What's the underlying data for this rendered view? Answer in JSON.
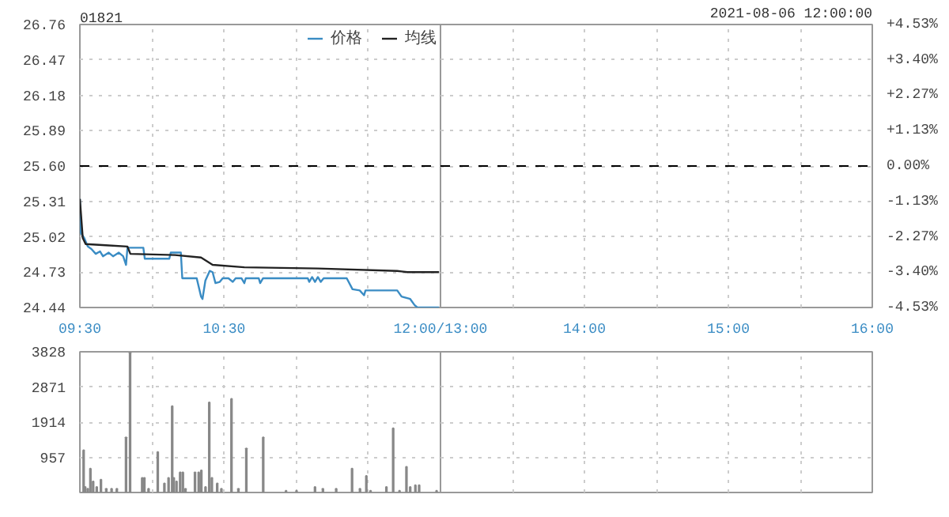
{
  "chart_data": [
    {
      "type": "line",
      "title": "01821",
      "legend": "top right",
      "grid": true,
      "marker": "none",
      "line_style": "solid",
      "xlim": [
        9.5,
        12
      ],
      "xticks": [
        {
          "value": 9.5,
          "label": "09:30"
        },
        {
          "value": 10,
          "label": null
        },
        {
          "value": 10.5,
          "label": "10:30"
        },
        {
          "value": 11,
          "label": null
        },
        {
          "value": 11.5,
          "label": null
        },
        {
          "value": 12,
          "label": "12:00/13:00"
        }
      ],
      "ylim": [
        24.44,
        26.76
      ],
      "yticks": [
        {
          "value": 24.44,
          "label": "24.44"
        },
        {
          "value": 24.73,
          "label": "24.73"
        },
        {
          "value": 25.02,
          "label": "25.02"
        },
        {
          "value": 25.31,
          "label": "25.31"
        },
        {
          "value": 25.6,
          "label": "25.60"
        },
        {
          "value": 25.89,
          "label": "25.89"
        },
        {
          "value": 26.18,
          "label": "26.18"
        },
        {
          "value": 26.47,
          "label": "26.47"
        },
        {
          "value": 26.76,
          "label": "26.76"
        }
      ],
      "ref_lines": [
        {
          "axis": "y",
          "value": 25.6,
          "color": "#000000",
          "line_style": "dashed"
        }
      ],
      "series": [
        {
          "name": "价格",
          "color": "#3a8cc4",
          "x": [
            9.5,
            9.507,
            9.53,
            9.555,
            9.58,
            9.61,
            9.64,
            9.66,
            9.7,
            9.73,
            9.77,
            9.8,
            9.82,
            9.83,
            9.88,
            9.94,
            9.95,
            10.05,
            10.12,
            10.13,
            10.2,
            10.21,
            10.27,
            10.31,
            10.34,
            10.35,
            10.37,
            10.4,
            10.42,
            10.44,
            10.47,
            10.49,
            10.53,
            10.56,
            10.58,
            10.62,
            10.64,
            10.65,
            10.74,
            10.75,
            10.77,
            11.08,
            11.09,
            11.11,
            11.13,
            11.15,
            11.17,
            11.19,
            11.35,
            11.39,
            11.44,
            11.47,
            11.48,
            11.7,
            11.73,
            11.79,
            11.82,
            11.84,
            11.99
          ],
          "values": [
            25.33,
            25.05,
            25.01,
            24.94,
            24.92,
            24.88,
            24.9,
            24.86,
            24.89,
            24.86,
            24.89,
            24.86,
            24.79,
            24.93,
            24.93,
            24.93,
            24.84,
            24.84,
            24.84,
            24.89,
            24.89,
            24.68,
            24.68,
            24.68,
            24.53,
            24.51,
            24.66,
            24.74,
            24.73,
            24.64,
            24.65,
            24.68,
            24.68,
            24.65,
            24.68,
            24.68,
            24.64,
            24.68,
            24.68,
            24.64,
            24.68,
            24.68,
            24.65,
            24.69,
            24.65,
            24.69,
            24.65,
            24.68,
            24.68,
            24.59,
            24.58,
            24.54,
            24.58,
            24.58,
            24.53,
            24.51,
            24.46,
            24.44,
            24.44
          ]
        },
        {
          "name": "均线",
          "color": "#222222",
          "x": [
            9.5,
            9.52,
            9.54,
            9.68,
            9.83,
            9.85,
            10.16,
            10.34,
            10.42,
            10.64,
            11.15,
            11.7,
            11.77,
            11.99
          ],
          "values": [
            25.33,
            25.01,
            24.96,
            24.95,
            24.94,
            24.88,
            24.87,
            24.85,
            24.79,
            24.77,
            24.76,
            24.74,
            24.73,
            24.73
          ]
        }
      ]
    },
    {
      "type": "line",
      "title": "2021-08-06 12:00:00",
      "grid": true,
      "xlim": [
        13,
        16
      ],
      "xticks": [
        {
          "value": 13,
          "label": null
        },
        {
          "value": 13.5,
          "label": null
        },
        {
          "value": 14,
          "label": "14:00"
        },
        {
          "value": 14.5,
          "label": null
        },
        {
          "value": 15,
          "label": "15:00"
        },
        {
          "value": 15.5,
          "label": null
        },
        {
          "value": 16,
          "label": "16:00"
        }
      ],
      "y2lim": [
        -4.53,
        4.53
      ],
      "y2ticks": [
        {
          "value": -4.53,
          "label": "-4.53%"
        },
        {
          "value": -3.4,
          "label": "-3.40%"
        },
        {
          "value": -2.27,
          "label": "-2.27%"
        },
        {
          "value": -1.13,
          "label": "-1.13%"
        },
        {
          "value": 0,
          "label": "0.00%"
        },
        {
          "value": 1.13,
          "label": "+1.13%"
        },
        {
          "value": 2.27,
          "label": "+2.27%"
        },
        {
          "value": 3.4,
          "label": "+3.40%"
        },
        {
          "value": 4.53,
          "label": "+4.53%"
        }
      ],
      "ref_lines": [
        {
          "axis": "y2",
          "value": 0,
          "color": "#000000",
          "line_style": "dashed"
        }
      ]
    },
    {
      "type": "bar",
      "grid": true,
      "tick_labels": "y",
      "color": "#888888",
      "xlim": [
        9.5,
        12
      ],
      "xticks": [
        9.5,
        10,
        10.5,
        11,
        11.5,
        12
      ],
      "ylim": [
        0,
        3828
      ],
      "yticks": [
        {
          "value": 0,
          "label": null
        },
        957,
        1914,
        2871,
        3828
      ],
      "x": [
        9.526,
        9.537,
        9.555,
        9.573,
        9.592,
        9.617,
        9.646,
        9.683,
        9.72,
        9.756,
        9.82,
        9.848,
        9.932,
        9.947,
        9.976,
        10.04,
        10.086,
        10.115,
        10.14,
        10.151,
        10.17,
        10.195,
        10.214,
        10.232,
        10.298,
        10.324,
        10.342,
        10.371,
        10.397,
        10.415,
        10.452,
        10.481,
        10.551,
        10.599,
        10.654,
        10.771,
        10.929,
        11.002,
        11.13,
        11.185,
        11.277,
        11.387,
        11.442,
        11.486,
        11.515,
        11.625,
        11.672,
        11.716,
        11.764,
        11.79,
        11.826,
        11.852,
        11.973
      ],
      "values": [
        1150,
        150,
        100,
        650,
        300,
        150,
        350,
        100,
        100,
        100,
        1500,
        3800,
        400,
        400,
        100,
        1100,
        250,
        400,
        2350,
        400,
        300,
        550,
        550,
        100,
        550,
        550,
        600,
        150,
        2450,
        400,
        250,
        100,
        2550,
        100,
        1200,
        1500,
        50,
        50,
        150,
        100,
        100,
        650,
        100,
        450,
        50,
        150,
        1750,
        50,
        700,
        150,
        200,
        200,
        50
      ]
    },
    {
      "type": "bar",
      "grid": true,
      "tick_labels": false,
      "xlim": [
        13,
        16
      ],
      "xticks": [
        13,
        13.5,
        14,
        14.5,
        15,
        15.5,
        16
      ],
      "ylim": [
        0,
        3828
      ],
      "yticks": [
        0,
        957,
        1914,
        2871,
        3828
      ]
    }
  ]
}
